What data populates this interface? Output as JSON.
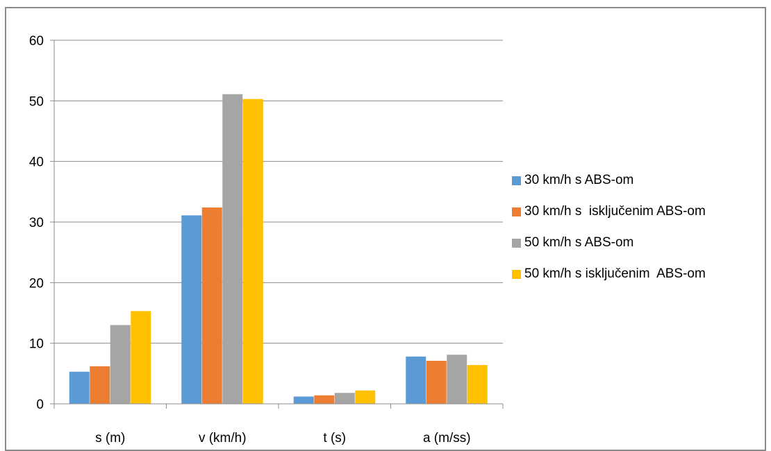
{
  "chart_data": {
    "type": "bar",
    "title": "",
    "xlabel": "",
    "ylabel": "",
    "categories": [
      "s (m)",
      "v (km/h)",
      "t (s)",
      "a (m/ss)"
    ],
    "ylim": [
      0,
      60
    ],
    "yticks": [
      0,
      10,
      20,
      30,
      40,
      50,
      60
    ],
    "grid": true,
    "legend_position": "right",
    "series": [
      {
        "name": "30 km/h s ABS-om",
        "color": "#5b9bd5",
        "values": [
          5.3,
          31.1,
          1.2,
          7.8
        ]
      },
      {
        "name": "30 km/h s  isključenim ABS-om",
        "color": "#ed7d31",
        "values": [
          6.2,
          32.4,
          1.4,
          7.1
        ]
      },
      {
        "name": "50 km/h s ABS-om",
        "color": "#a5a5a5",
        "values": [
          13.0,
          51.1,
          1.8,
          8.1
        ]
      },
      {
        "name": "50 km/h s isključenim  ABS-om",
        "color": "#ffc000",
        "values": [
          15.3,
          50.3,
          2.2,
          6.4
        ]
      }
    ]
  }
}
